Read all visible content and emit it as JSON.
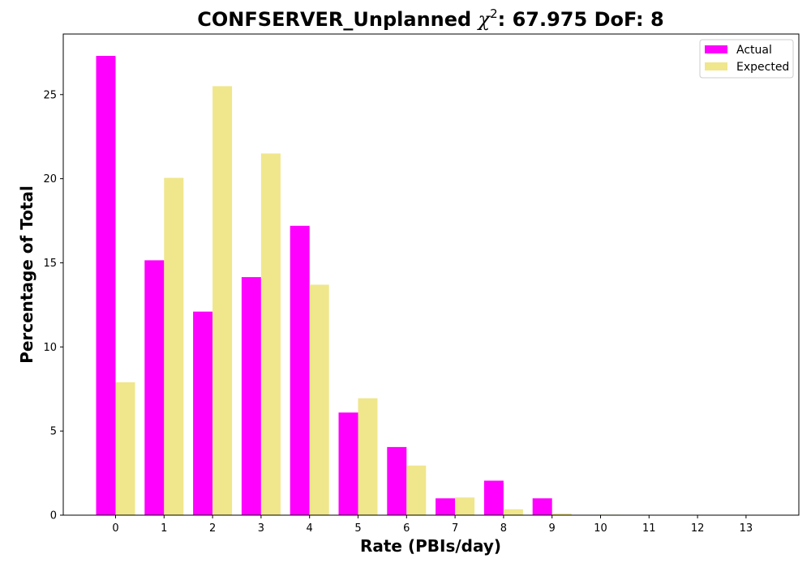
{
  "chart_data": {
    "type": "bar",
    "title_prefix": "CONFSERVER_Unplanned ",
    "title_symbol": "χ",
    "title_superscript": "2",
    "title_suffix": ": 67.975 DoF: 8",
    "xlabel": "Rate (PBIs/day)",
    "ylabel": "Percentage of Total",
    "categories": [
      "0",
      "1",
      "2",
      "3",
      "4",
      "5",
      "6",
      "7",
      "8",
      "9",
      "10",
      "11",
      "12",
      "13"
    ],
    "series": [
      {
        "name": "Actual",
        "color": "#ff00ff",
        "values": [
          27.3,
          15.15,
          12.1,
          14.15,
          17.2,
          6.1,
          4.05,
          1.0,
          2.05,
          1.0,
          0,
          0,
          0,
          0
        ]
      },
      {
        "name": "Expected",
        "color": "#f0e68c",
        "values": [
          7.9,
          20.05,
          25.5,
          21.5,
          13.7,
          6.95,
          2.95,
          1.05,
          0.35,
          0.1,
          0.03,
          0,
          0,
          0
        ]
      }
    ],
    "yticks": [
      0,
      5,
      10,
      15,
      20,
      25
    ],
    "ylim": [
      0,
      28.6
    ],
    "legend_position": "top-right",
    "grid": false
  }
}
